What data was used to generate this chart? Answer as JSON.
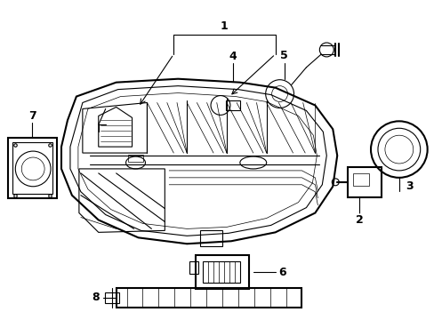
{
  "background_color": "#ffffff",
  "line_color": "#000000",
  "figsize": [
    4.89,
    3.6
  ],
  "dpi": 100
}
